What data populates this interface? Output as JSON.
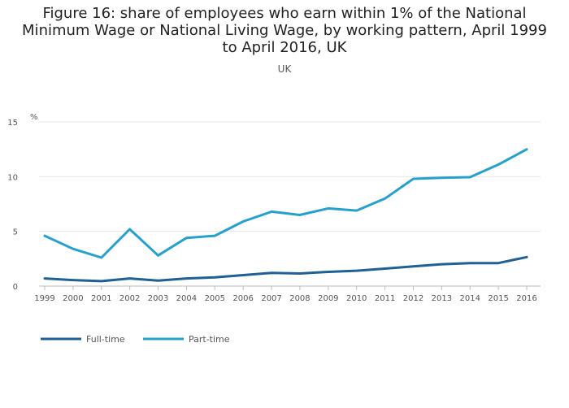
{
  "chart_data": {
    "type": "line",
    "title": "Figure 16: share of employees who earn within 1% of the National Minimum Wage or National Living Wage, by working pattern, April 1999 to April 2016, UK",
    "subtitle": "UK",
    "xlabel": "",
    "ylabel": "%",
    "x": [
      "1999",
      "2000",
      "2001",
      "2002",
      "2003",
      "2004",
      "2005",
      "2006",
      "2007",
      "2008",
      "2009",
      "2010",
      "2011",
      "2012",
      "2013",
      "2014",
      "2015",
      "2016"
    ],
    "ylim": [
      0,
      15
    ],
    "yticks": [
      0,
      5,
      10,
      15
    ],
    "grid": true,
    "legend_position": "bottom-left",
    "series": [
      {
        "name": "Full-time",
        "color": "#206095",
        "values": [
          0.7,
          0.55,
          0.45,
          0.7,
          0.5,
          0.7,
          0.8,
          1.0,
          1.2,
          1.15,
          1.3,
          1.4,
          1.6,
          1.8,
          2.0,
          2.1,
          2.1,
          2.65
        ]
      },
      {
        "name": "Part-time",
        "color": "#27a0cc",
        "values": [
          4.6,
          3.4,
          2.6,
          5.2,
          2.8,
          4.4,
          4.6,
          5.9,
          6.8,
          6.5,
          7.1,
          6.9,
          8.0,
          9.8,
          9.9,
          9.95,
          11.1,
          12.5
        ]
      }
    ]
  }
}
